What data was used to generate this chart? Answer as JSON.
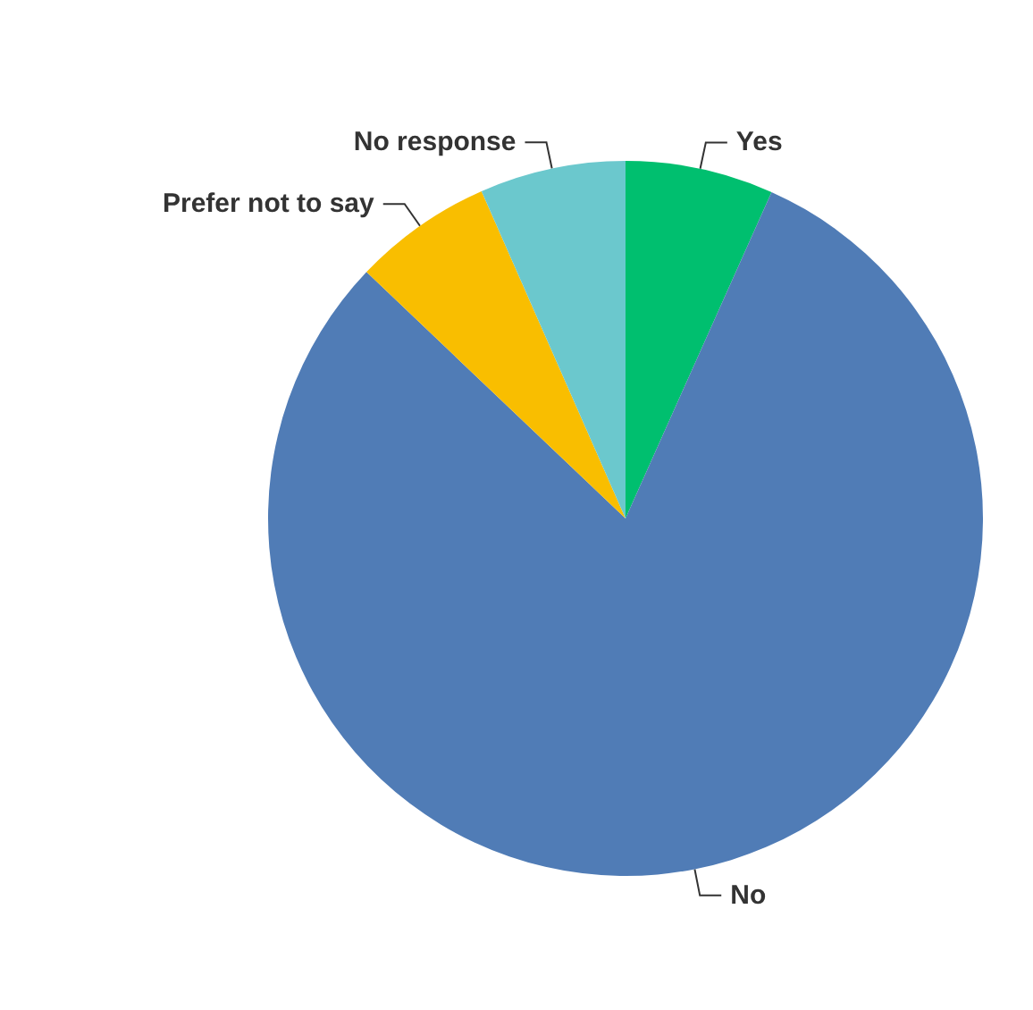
{
  "chart_data": {
    "type": "pie",
    "categories": [
      "Yes",
      "No",
      "Prefer not to say",
      "No response"
    ],
    "values": [
      6.7,
      80.4,
      6.3,
      6.6
    ],
    "colors": [
      "#00bf6f",
      "#507cb6",
      "#f9be00",
      "#6bc8cd"
    ]
  }
}
